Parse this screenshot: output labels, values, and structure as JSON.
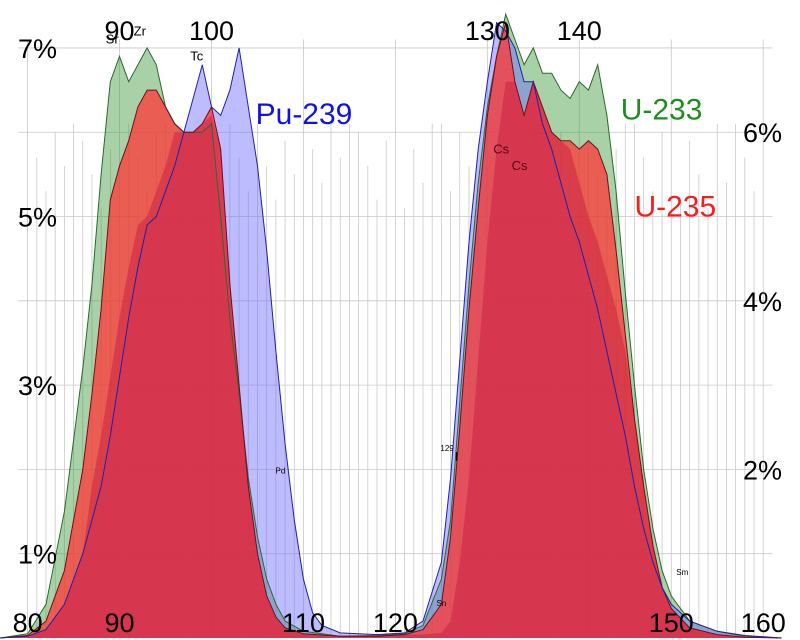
{
  "chart_data": {
    "type": "area",
    "top_ticks": [
      90,
      100,
      130,
      140
    ],
    "bottom_ticks": [
      {
        "value": 80,
        "label": "80"
      },
      {
        "value": 90,
        "label": "90"
      },
      {
        "value": 110,
        "label": "110"
      },
      {
        "value": 120,
        "label": "120"
      },
      {
        "value": 150,
        "label": "150"
      },
      {
        "value": 160,
        "label": "160"
      }
    ],
    "left_ticks": [
      {
        "value": 7,
        "label": "7%"
      },
      {
        "value": 5,
        "label": "5%"
      },
      {
        "value": 3,
        "label": "3%"
      },
      {
        "value": 1,
        "label": "1%"
      }
    ],
    "right_ticks": [
      {
        "value": 6,
        "label": "6%"
      },
      {
        "value": 4,
        "label": "4%"
      },
      {
        "value": 2,
        "label": "2%"
      }
    ],
    "xlim": [
      77,
      164
    ],
    "ylim": [
      0,
      7.45
    ],
    "grid": true,
    "series": [
      {
        "name": "U-233",
        "color": "#3d9a3d",
        "legend_color": "#1e8c1e",
        "points": [
          [
            77,
            0
          ],
          [
            80,
            0.05
          ],
          [
            82,
            0.4
          ],
          [
            84,
            1.5
          ],
          [
            86,
            3.2
          ],
          [
            87,
            4.2
          ],
          [
            88,
            5.5
          ],
          [
            89,
            6.6
          ],
          [
            90,
            6.9
          ],
          [
            91,
            6.6
          ],
          [
            92,
            6.8
          ],
          [
            93,
            7.0
          ],
          [
            94,
            6.8
          ],
          [
            95,
            6.3
          ],
          [
            96,
            6.1
          ],
          [
            97,
            6.0
          ],
          [
            98,
            6.0
          ],
          [
            99,
            6.0
          ],
          [
            100,
            6.1
          ],
          [
            101,
            5.0
          ],
          [
            102,
            3.8
          ],
          [
            103,
            2.9
          ],
          [
            104,
            1.9
          ],
          [
            105,
            1.2
          ],
          [
            106,
            0.7
          ],
          [
            107,
            0.4
          ],
          [
            108,
            0.2
          ],
          [
            110,
            0.08
          ],
          [
            114,
            0.02
          ],
          [
            118,
            0.03
          ],
          [
            121,
            0.05
          ],
          [
            123,
            0.15
          ],
          [
            125,
            0.7
          ],
          [
            126,
            1.4
          ],
          [
            127,
            2.8
          ],
          [
            128,
            4.2
          ],
          [
            129,
            5.4
          ],
          [
            130,
            6.3
          ],
          [
            131,
            6.9
          ],
          [
            132,
            7.4
          ],
          [
            133,
            7.1
          ],
          [
            134,
            6.8
          ],
          [
            135,
            7.0
          ],
          [
            136,
            6.7
          ],
          [
            137,
            6.7
          ],
          [
            138,
            6.5
          ],
          [
            139,
            6.4
          ],
          [
            140,
            6.6
          ],
          [
            141,
            6.5
          ],
          [
            142,
            6.8
          ],
          [
            143,
            6.2
          ],
          [
            144,
            5.3
          ],
          [
            145,
            4.1
          ],
          [
            146,
            3.0
          ],
          [
            147,
            2.0
          ],
          [
            148,
            1.3
          ],
          [
            149,
            0.8
          ],
          [
            150,
            0.5
          ],
          [
            152,
            0.2
          ],
          [
            155,
            0.08
          ],
          [
            158,
            0.02
          ],
          [
            162,
            0
          ]
        ]
      },
      {
        "name": "U-235",
        "color": "#ff3535",
        "legend_color": "#ff1a1a",
        "points": [
          [
            77,
            0
          ],
          [
            80,
            0.03
          ],
          [
            82,
            0.2
          ],
          [
            84,
            0.8
          ],
          [
            86,
            2.0
          ],
          [
            87,
            2.9
          ],
          [
            88,
            3.9
          ],
          [
            89,
            5.2
          ],
          [
            90,
            5.6
          ],
          [
            91,
            5.9
          ],
          [
            92,
            6.3
          ],
          [
            93,
            6.5
          ],
          [
            94,
            6.5
          ],
          [
            95,
            6.3
          ],
          [
            96,
            6.1
          ],
          [
            97,
            6.0
          ],
          [
            98,
            6.0
          ],
          [
            99,
            6.1
          ],
          [
            100,
            6.3
          ],
          [
            101,
            5.8
          ],
          [
            102,
            4.2
          ],
          [
            103,
            3.0
          ],
          [
            104,
            1.8
          ],
          [
            105,
            1.0
          ],
          [
            106,
            0.5
          ],
          [
            107,
            0.25
          ],
          [
            108,
            0.12
          ],
          [
            110,
            0.05
          ],
          [
            114,
            0.02
          ],
          [
            118,
            0.02
          ],
          [
            121,
            0.04
          ],
          [
            123,
            0.1
          ],
          [
            125,
            0.4
          ],
          [
            126,
            1.2
          ],
          [
            127,
            2.5
          ],
          [
            128,
            3.9
          ],
          [
            129,
            5.1
          ],
          [
            130,
            6.2
          ],
          [
            131,
            6.9
          ],
          [
            132,
            7.3
          ],
          [
            133,
            6.6
          ],
          [
            134,
            6.2
          ],
          [
            135,
            6.6
          ],
          [
            136,
            6.3
          ],
          [
            137,
            6.0
          ],
          [
            138,
            5.9
          ],
          [
            139,
            5.9
          ],
          [
            140,
            5.8
          ],
          [
            141,
            5.9
          ],
          [
            142,
            5.8
          ],
          [
            143,
            5.5
          ],
          [
            144,
            4.6
          ],
          [
            145,
            3.6
          ],
          [
            146,
            2.6
          ],
          [
            147,
            1.8
          ],
          [
            148,
            1.1
          ],
          [
            149,
            0.6
          ],
          [
            150,
            0.35
          ],
          [
            152,
            0.12
          ],
          [
            155,
            0.04
          ],
          [
            158,
            0.01
          ],
          [
            162,
            0
          ]
        ]
      },
      {
        "name": "Pu-239",
        "color": "#6b6bff",
        "legend_color": "#1010ee",
        "points": [
          [
            77,
            0
          ],
          [
            80,
            0.02
          ],
          [
            82,
            0.1
          ],
          [
            84,
            0.4
          ],
          [
            86,
            1.0
          ],
          [
            88,
            1.8
          ],
          [
            89,
            2.4
          ],
          [
            90,
            3.1
          ],
          [
            91,
            3.8
          ],
          [
            92,
            4.4
          ],
          [
            93,
            4.9
          ],
          [
            94,
            5.0
          ],
          [
            95,
            5.3
          ],
          [
            96,
            5.6
          ],
          [
            97,
            6.0
          ],
          [
            98,
            6.4
          ],
          [
            99,
            6.8
          ],
          [
            100,
            6.3
          ],
          [
            101,
            6.2
          ],
          [
            102,
            6.5
          ],
          [
            103,
            7.0
          ],
          [
            104,
            6.3
          ],
          [
            105,
            5.6
          ],
          [
            106,
            4.6
          ],
          [
            107,
            3.4
          ],
          [
            108,
            2.3
          ],
          [
            109,
            1.4
          ],
          [
            110,
            0.7
          ],
          [
            111,
            0.3
          ],
          [
            112,
            0.15
          ],
          [
            114,
            0.06
          ],
          [
            118,
            0.04
          ],
          [
            121,
            0.06
          ],
          [
            123,
            0.2
          ],
          [
            125,
            0.9
          ],
          [
            126,
            1.9
          ],
          [
            127,
            3.3
          ],
          [
            128,
            4.7
          ],
          [
            129,
            5.8
          ],
          [
            130,
            6.6
          ],
          [
            131,
            7.3
          ],
          [
            132,
            7.2
          ],
          [
            133,
            7.0
          ],
          [
            134,
            6.6
          ],
          [
            135,
            6.6
          ],
          [
            136,
            6.1
          ],
          [
            137,
            5.8
          ],
          [
            138,
            5.4
          ],
          [
            139,
            5.0
          ],
          [
            140,
            4.7
          ],
          [
            141,
            4.3
          ],
          [
            142,
            3.9
          ],
          [
            143,
            3.4
          ],
          [
            144,
            2.9
          ],
          [
            145,
            2.4
          ],
          [
            146,
            1.8
          ],
          [
            147,
            1.3
          ],
          [
            148,
            0.9
          ],
          [
            149,
            0.6
          ],
          [
            150,
            0.4
          ],
          [
            152,
            0.2
          ],
          [
            155,
            0.08
          ],
          [
            158,
            0.03
          ],
          [
            162,
            0
          ]
        ]
      }
    ],
    "overlap_color": "#cc2244",
    "annotations": [
      {
        "text": "Sr",
        "x": 89.2,
        "y": 7.05
      },
      {
        "text": "Zr",
        "x": 92.2,
        "y": 7.15
      },
      {
        "text": "Tc",
        "x": 98.4,
        "y": 6.85
      },
      {
        "text": "Pd",
        "x": 107.5,
        "y": 1.95,
        "size": "small"
      },
      {
        "text": "Sn",
        "x": 125.0,
        "y": 0.38,
        "size": "small"
      },
      {
        "text": "Sm",
        "x": 151.2,
        "y": 0.75,
        "size": "small"
      }
    ],
    "iodine_label": {
      "mass": "129",
      "symbol": "I",
      "x": 127.0,
      "y": 2.1
    },
    "cs_labels": [
      {
        "text": "Cs",
        "x": 131.5,
        "y": 5.75
      },
      {
        "text": "Cs",
        "x": 133.5,
        "y": 5.55
      }
    ],
    "legend_labels": [
      {
        "series": "Pu-239",
        "x": 104.8,
        "y": 6.1
      },
      {
        "series": "U-233",
        "x": 144.5,
        "y": 6.15
      },
      {
        "series": "U-235",
        "x": 146.0,
        "y": 5.0
      }
    ]
  }
}
